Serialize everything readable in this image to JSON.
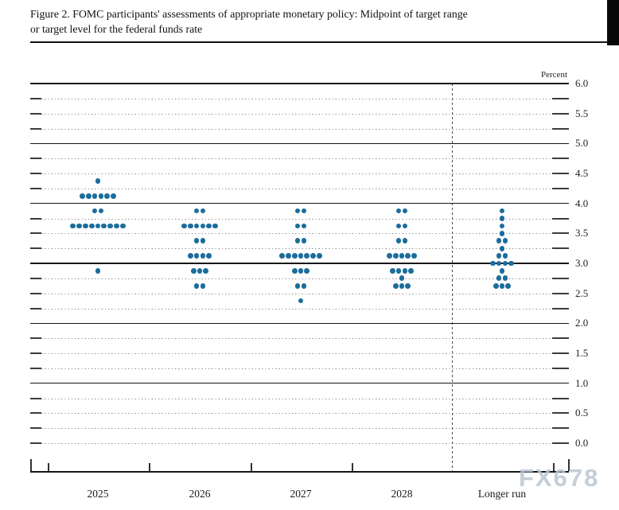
{
  "figure": {
    "title_line1": "Figure 2. FOMC participants' assessments of appropriate monetary policy: Midpoint of target range",
    "title_line2": "or target level for the federal funds rate",
    "unit_label": "Percent",
    "watermark": "FX678"
  },
  "axes": {
    "y_right_labels": [
      "6.0",
      "5.5",
      "5.0",
      "4.5",
      "4.0",
      "3.5",
      "3.0",
      "2.5",
      "2.0",
      "1.5",
      "1.0",
      "0.5",
      "0.0"
    ],
    "x_labels": [
      "2025",
      "2026",
      "2027",
      "2028",
      "Longer run"
    ]
  },
  "chart_data": {
    "type": "scatter",
    "title": "Figure 2. FOMC participants' assessments of appropriate monetary policy: Midpoint of target range or target level for the federal funds rate",
    "ylabel": "Percent",
    "ylim": [
      0.0,
      6.0
    ],
    "y_label_step": 0.5,
    "y_grid_step": 0.25,
    "solid_gridlines": [
      6.0,
      5.0,
      4.0,
      3.0,
      2.0,
      1.0
    ],
    "grid": "dotted lines at every 0.25 with edge ticks; solid lines at 1.0-6.0 integers; dashed vertical separator before Longer run",
    "legend_position": "none",
    "categories": [
      "2025",
      "2026",
      "2027",
      "2028",
      "Longer run"
    ],
    "series": [
      {
        "name": "2025",
        "dots": [
          {
            "rate": 4.375,
            "count": 1
          },
          {
            "rate": 4.125,
            "count": 6
          },
          {
            "rate": 3.875,
            "count": 2
          },
          {
            "rate": 3.625,
            "count": 9
          },
          {
            "rate": 2.875,
            "count": 1
          }
        ]
      },
      {
        "name": "2026",
        "dots": [
          {
            "rate": 3.875,
            "count": 2
          },
          {
            "rate": 3.625,
            "count": 6
          },
          {
            "rate": 3.375,
            "count": 2
          },
          {
            "rate": 3.125,
            "count": 4
          },
          {
            "rate": 2.875,
            "count": 3
          },
          {
            "rate": 2.625,
            "count": 2
          }
        ]
      },
      {
        "name": "2027",
        "dots": [
          {
            "rate": 3.875,
            "count": 2
          },
          {
            "rate": 3.625,
            "count": 2
          },
          {
            "rate": 3.375,
            "count": 2
          },
          {
            "rate": 3.125,
            "count": 7
          },
          {
            "rate": 2.875,
            "count": 3
          },
          {
            "rate": 2.625,
            "count": 2
          },
          {
            "rate": 2.375,
            "count": 1
          }
        ]
      },
      {
        "name": "2028",
        "dots": [
          {
            "rate": 3.875,
            "count": 2
          },
          {
            "rate": 3.625,
            "count": 2
          },
          {
            "rate": 3.375,
            "count": 2
          },
          {
            "rate": 3.125,
            "count": 5
          },
          {
            "rate": 2.875,
            "count": 4
          },
          {
            "rate": 2.75,
            "count": 1
          },
          {
            "rate": 2.625,
            "count": 3
          }
        ]
      },
      {
        "name": "Longer run",
        "dots": [
          {
            "rate": 3.875,
            "count": 1
          },
          {
            "rate": 3.75,
            "count": 1
          },
          {
            "rate": 3.625,
            "count": 1
          },
          {
            "rate": 3.5,
            "count": 1
          },
          {
            "rate": 3.375,
            "count": 2
          },
          {
            "rate": 3.25,
            "count": 1
          },
          {
            "rate": 3.125,
            "count": 2
          },
          {
            "rate": 3.0,
            "count": 4
          },
          {
            "rate": 2.875,
            "count": 1
          },
          {
            "rate": 2.75,
            "count": 2
          },
          {
            "rate": 2.625,
            "count": 3
          }
        ]
      }
    ],
    "colors": {
      "dot": "#1b6d9c",
      "solid_line": "#161616",
      "dotted_line": "#8c8c8c",
      "watermark": "#bac6d2"
    }
  }
}
